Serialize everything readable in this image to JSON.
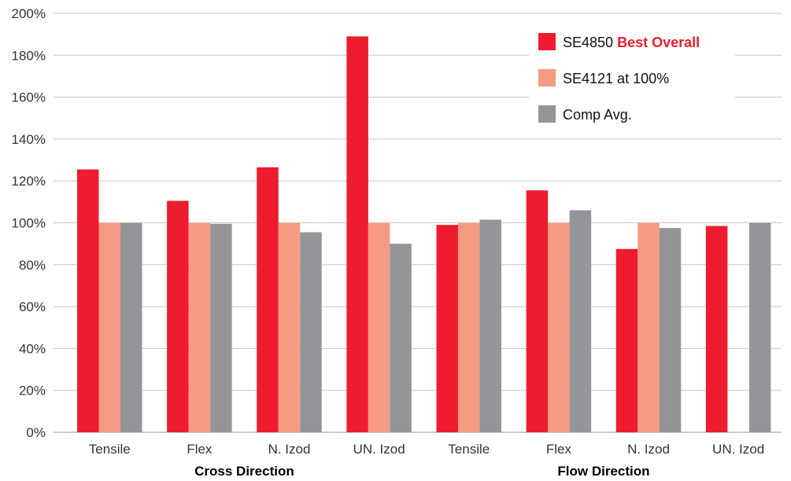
{
  "chart_data": {
    "type": "bar",
    "categories": [
      "Tensile",
      "Flex",
      "N. Izod",
      "UN. Izod",
      "Tensile",
      "Flex",
      "N. Izod",
      "UN. Izod"
    ],
    "groups": [
      {
        "label": "Cross Direction",
        "from": 0,
        "to": 3
      },
      {
        "label": "Flow Direction",
        "from": 4,
        "to": 7
      }
    ],
    "series": [
      {
        "name": "SE4850",
        "name_suffix": "Best Overall",
        "color": "#ed1c2e",
        "suffix_color": "#ed1c2e",
        "values": [
          125.5,
          110.5,
          126.5,
          189,
          99,
          115.5,
          87.5,
          98.5
        ]
      },
      {
        "name": "SE4121 at 100%",
        "color": "#f69b83",
        "values": [
          100,
          100,
          100,
          100,
          100,
          100,
          100,
          null
        ]
      },
      {
        "name": "Comp Avg.",
        "color": "#939598",
        "values": [
          100,
          99.5,
          95.5,
          90,
          101.5,
          106,
          97.5,
          100
        ]
      }
    ],
    "yticks": [
      "0%",
      "20%",
      "40%",
      "60%",
      "80%",
      "100%",
      "120%",
      "140%",
      "160%",
      "180%",
      "200%"
    ],
    "ylim": [
      0,
      200
    ],
    "grid": true,
    "legend_position": "top-right"
  }
}
